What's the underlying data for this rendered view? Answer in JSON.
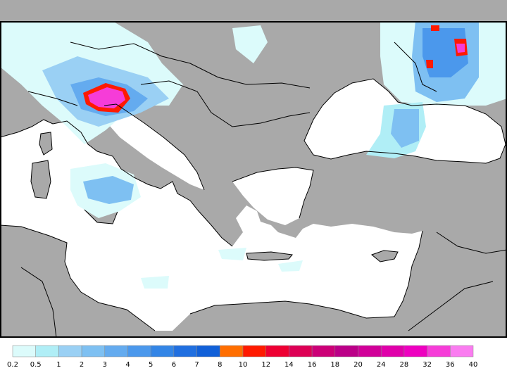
{
  "map": {
    "region": "Mediterranean and Black Sea precipitation field",
    "colors": {
      "land": "#a9a9a9",
      "sea": "#ffffff",
      "border": "#000000",
      "frame": "#000000"
    }
  },
  "legend": {
    "ticks": [
      "0.2",
      "0.5",
      "1",
      "2",
      "3",
      "4",
      "5",
      "6",
      "7",
      "8",
      "10",
      "12",
      "14",
      "16",
      "18",
      "20",
      "24",
      "28",
      "32",
      "36",
      "40"
    ],
    "colors": [
      "#dcfbfb",
      "#b0eef6",
      "#9ad0f4",
      "#7ec0f2",
      "#64abef",
      "#4b98ec",
      "#3385e6",
      "#206fe0",
      "#1160d8",
      "#ff6e00",
      "#ff1a00",
      "#ee0033",
      "#dd0055",
      "#cc0077",
      "#bb0088",
      "#d10099",
      "#e000aa",
      "#ee00c0",
      "#f63cd8",
      "#fa7cf0"
    ]
  }
}
